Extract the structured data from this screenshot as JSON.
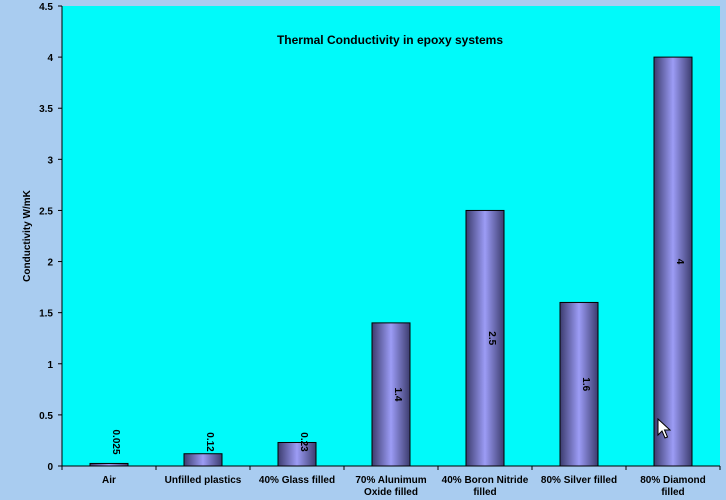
{
  "chart_data": {
    "type": "bar",
    "title": "Thermal Conductivity in epoxy systems",
    "ylabel": "Conductivity W/mK",
    "xlabel": "",
    "ylim": [
      0,
      4.5
    ],
    "yticks": [
      "0",
      "0.5",
      "1",
      "1.5",
      "2",
      "2.5",
      "3",
      "3.5",
      "4",
      "4.5"
    ],
    "categories": [
      [
        "Air"
      ],
      [
        "Unfilled plastics"
      ],
      [
        "40% Glass filled"
      ],
      [
        "70% Alunimum",
        "Oxide filled"
      ],
      [
        "40% Boron Nitride",
        "filled"
      ],
      [
        "80% Silver filled"
      ],
      [
        "80% Diamond",
        "filled"
      ]
    ],
    "values": [
      0.025,
      0.12,
      0.23,
      1.4,
      2.5,
      1.6,
      4
    ],
    "data_labels": [
      "0.025",
      "0.12",
      "0.23",
      "1.4",
      "2.5",
      "1.6",
      "4"
    ],
    "grid": false,
    "legend": "none",
    "colors": {
      "plot_background": "#00fafa",
      "page_background": "#a9ccf0",
      "bar_edge": "#3c3c6e",
      "bar_center": "#9c9cf6"
    }
  },
  "icons": {
    "cursor": "mouse-pointer-icon"
  }
}
